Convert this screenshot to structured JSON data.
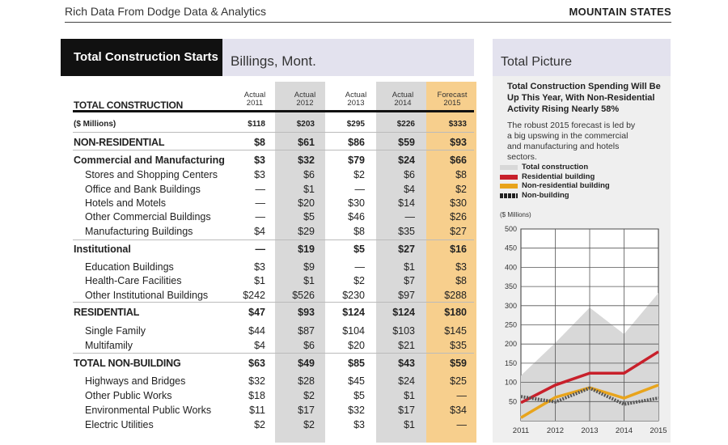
{
  "header": {
    "source": "Rich Data From Dodge Data & Analytics",
    "region": "MOUNTAIN STATES"
  },
  "table": {
    "title": "Total Construction Starts",
    "subtitle": "Billings, Mont.",
    "heading": "TOTAL CONSTRUCTION",
    "columns": [
      {
        "status": "Actual",
        "year": "2011"
      },
      {
        "status": "Actual",
        "year": "2012"
      },
      {
        "status": "Actual",
        "year": "2013"
      },
      {
        "status": "Actual",
        "year": "2014"
      },
      {
        "status": "Forecast",
        "year": "2015"
      }
    ],
    "rows": [
      {
        "label": "($ Millions)",
        "values": [
          "$118",
          "$203",
          "$295",
          "$226",
          "$333"
        ]
      },
      {
        "label": "NON-RESIDENTIAL",
        "values": [
          "$8",
          "$61",
          "$86",
          "$59",
          "$93"
        ]
      },
      {
        "label": "Commercial and Manufacturing",
        "values": [
          "$3",
          "$32",
          "$79",
          "$24",
          "$66"
        ]
      },
      {
        "label": "Stores and Shopping Centers",
        "values": [
          "$3",
          "$6",
          "$2",
          "$6",
          "$8"
        ]
      },
      {
        "label": "Office and Bank Buildings",
        "values": [
          "—",
          "$1",
          "—",
          "$4",
          "$2"
        ]
      },
      {
        "label": "Hotels and Motels",
        "values": [
          "—",
          "$20",
          "$30",
          "$14",
          "$30"
        ]
      },
      {
        "label": "Other Commercial Buildings",
        "values": [
          "—",
          "$5",
          "$46",
          "—",
          "$26"
        ]
      },
      {
        "label": "Manufacturing Buildings",
        "values": [
          "$4",
          "$29",
          "$8",
          "$35",
          "$27"
        ]
      },
      {
        "label": "Institutional",
        "values": [
          "—",
          "$19",
          "$5",
          "$27",
          "$16"
        ]
      },
      {
        "label": "Education Buildings",
        "values": [
          "$3",
          "$9",
          "—",
          "$1",
          "$3"
        ]
      },
      {
        "label": "Health-Care Facilities",
        "values": [
          "$1",
          "$1",
          "$2",
          "$7",
          "$8"
        ]
      },
      {
        "label": "Other Institutional Buildings",
        "values": [
          "$242",
          "$526",
          "$230",
          "$97",
          "$288"
        ]
      },
      {
        "label": "RESIDENTIAL",
        "values": [
          "$47",
          "$93",
          "$124",
          "$124",
          "$180"
        ]
      },
      {
        "label": "Single Family",
        "values": [
          "$44",
          "$87",
          "$104",
          "$103",
          "$145"
        ]
      },
      {
        "label": "Multifamily",
        "values": [
          "$4",
          "$6",
          "$20",
          "$21",
          "$35"
        ]
      },
      {
        "label": "TOTAL NON-BUILDING",
        "values": [
          "$63",
          "$49",
          "$85",
          "$43",
          "$59"
        ]
      },
      {
        "label": "Highways and Bridges",
        "values": [
          "$32",
          "$28",
          "$45",
          "$24",
          "$25"
        ]
      },
      {
        "label": "Other Public Works",
        "values": [
          "$18",
          "$2",
          "$5",
          "$1",
          "—"
        ]
      },
      {
        "label": "Environmental Public Works",
        "values": [
          "$11",
          "$17",
          "$32",
          "$17",
          "$34"
        ]
      },
      {
        "label": "Electric Utilities",
        "values": [
          "$2",
          "$2",
          "$3",
          "$1",
          "—"
        ]
      }
    ]
  },
  "sidebar": {
    "title": "Total Picture",
    "headline": "Total Construction Spending Will Be Up This Year, With Non-Residential Activity Rising Nearly 58%",
    "body": "The robust 2015 forecast is led by a big upswing in the commercial and manufacturing and hotels sectors."
  },
  "chart_data": {
    "type": "area",
    "ylabel": "($ Millions)",
    "x": [
      "2011",
      "2012",
      "2013",
      "2014",
      "2015"
    ],
    "yticks": [
      50,
      100,
      150,
      200,
      250,
      300,
      350,
      400,
      450,
      500
    ],
    "ylim": [
      0,
      500
    ],
    "grid": true,
    "legend_position": "top-left",
    "series": [
      {
        "name": "Total construction",
        "style": "area",
        "color": "#d8d8d8",
        "values": [
          118,
          203,
          295,
          226,
          333
        ]
      },
      {
        "name": "Residential building",
        "style": "line",
        "color": "#c8202b",
        "values": [
          47,
          93,
          124,
          124,
          180
        ]
      },
      {
        "name": "Non-residential building",
        "style": "line",
        "color": "#e8a41c",
        "values": [
          8,
          61,
          86,
          59,
          93
        ]
      },
      {
        "name": "Non-building",
        "style": "dashed",
        "color": "#555555",
        "values": [
          63,
          49,
          85,
          43,
          59
        ]
      }
    ]
  }
}
